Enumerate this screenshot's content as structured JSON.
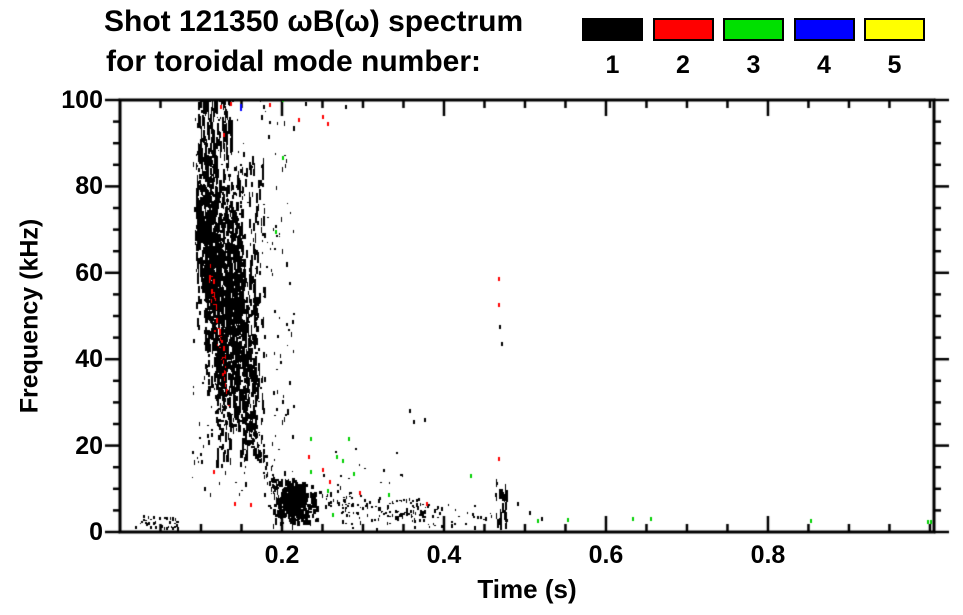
{
  "chart_data": {
    "type": "scatter",
    "title": "Shot 121350 ωB(ω) spectrum",
    "subtitle": "for toroidal mode number:",
    "legend": {
      "position": "top-right",
      "entries": [
        {
          "label": "1",
          "color": "#000000"
        },
        {
          "label": "2",
          "color": "#ff0000"
        },
        {
          "label": "3",
          "color": "#00e000"
        },
        {
          "label": "4",
          "color": "#0000ff"
        },
        {
          "label": "5",
          "color": "#ffff00"
        }
      ]
    },
    "x_axis": {
      "label": "Time (s)",
      "range": [
        0,
        1.005
      ],
      "major_ticks": [
        0.2,
        0.4,
        0.6,
        0.8
      ],
      "major_tick_labels": [
        "0.2",
        "0.4",
        "0.6",
        "0.8"
      ],
      "minor_tick_step": 0.05,
      "grid": false
    },
    "y_axis": {
      "label": "Frequency (kHz)",
      "range": [
        0,
        100
      ],
      "major_ticks": [
        0,
        20,
        40,
        60,
        80,
        100
      ],
      "major_tick_labels": [
        "0",
        "20",
        "40",
        "60",
        "80",
        "100"
      ],
      "minor_tick_step": 5,
      "grid": false
    },
    "series": [
      {
        "name": "n=1",
        "mode": 1,
        "color": "#000000",
        "clusters": [
          {
            "name": "pre-burst-specks",
            "style": "specks",
            "t": [
              0.018,
              0.072
            ],
            "f": [
              0.3,
              3.5
            ],
            "n": 40
          },
          {
            "name": "burst-upper",
            "style": "dense",
            "t": [
              0.093,
              0.12
            ],
            "f": [
              45,
              90
            ],
            "n": 430
          },
          {
            "name": "burst-core",
            "style": "dense",
            "t": [
              0.104,
              0.152
            ],
            "f": [
              28,
              88
            ],
            "n": 1000
          },
          {
            "name": "burst-lower",
            "style": "dense",
            "t": [
              0.118,
              0.168
            ],
            "f": [
              12,
              62
            ],
            "n": 550
          },
          {
            "name": "burst-top-spikes",
            "style": "spikes",
            "t": [
              0.095,
              0.138
            ],
            "f": [
              85,
              100
            ],
            "n": 120
          },
          {
            "name": "burst-halo",
            "style": "sparse",
            "t": [
              0.088,
              0.185
            ],
            "f": [
              8,
              100
            ],
            "n": 200
          },
          {
            "name": "post-burst-streaks",
            "style": "streaks",
            "t": [
              0.152,
              0.178
            ],
            "f": [
              15,
              85
            ],
            "n": 150,
            "columns": 5
          },
          {
            "name": "chirp-down",
            "style": "sparse",
            "line": {
              "t": [
                0.148,
                0.196
              ],
              "f": [
                33,
                7
              ]
            },
            "jitter": 2.5,
            "n": 90
          },
          {
            "name": "sparse-column",
            "style": "sparse",
            "t": [
              0.186,
              0.214
            ],
            "f": [
              12,
              96
            ],
            "n": 60
          },
          {
            "name": "low-freq-blob",
            "style": "blob",
            "t": [
              0.183,
              0.247
            ],
            "f": [
              0.5,
              12
            ],
            "n": 430
          },
          {
            "name": "low-tail-train",
            "style": "specks",
            "line": {
              "t": [
                0.248,
                0.378
              ],
              "f": [
                7,
                4.5
              ]
            },
            "jitter": 2.5,
            "n": 105
          },
          {
            "name": "mid-band-specks",
            "style": "specks",
            "t": [
              0.25,
              0.35
            ],
            "f": [
              8,
              20
            ],
            "n": 15
          },
          {
            "name": "bottom-scatter",
            "style": "specks",
            "t": [
              0.27,
              0.46
            ],
            "f": [
              0.3,
              6
            ],
            "n": 70
          },
          {
            "name": "streak-0p47",
            "style": "streaks",
            "t": [
              0.462,
              0.478
            ],
            "f": [
              0.5,
              11
            ],
            "n": 36,
            "columns": 3
          }
        ],
        "points": [
          {
            "t": 0.177,
            "f": 98
          },
          {
            "t": 0.228,
            "f": 98.5
          },
          {
            "t": 0.278,
            "f": 98
          },
          {
            "t": 0.357,
            "f": 27.5
          },
          {
            "t": 0.362,
            "f": 25
          },
          {
            "t": 0.375,
            "f": 25.5
          },
          {
            "t": 0.468,
            "f": 47
          },
          {
            "t": 0.47,
            "f": 43
          },
          {
            "t": 0.49,
            "f": 6
          },
          {
            "t": 0.505,
            "f": 4
          },
          {
            "t": 0.52,
            "f": 2.5
          }
        ]
      },
      {
        "name": "n=2",
        "mode": 2,
        "color": "#ff0000",
        "clusters": [
          {
            "name": "red-chirp",
            "style": "sparse",
            "line": {
              "t": [
                0.109,
                0.134
              ],
              "f": [
                61,
                30
              ]
            },
            "jitter": 2,
            "n": 45
          }
        ],
        "points": [
          {
            "t": 0.1235,
            "f": 98
          },
          {
            "t": 0.136,
            "f": 98.5
          },
          {
            "t": 0.127,
            "f": 91.5
          },
          {
            "t": 0.184,
            "f": 98.3
          },
          {
            "t": 0.22,
            "f": 95
          },
          {
            "t": 0.25,
            "f": 95.5
          },
          {
            "t": 0.256,
            "f": 94
          },
          {
            "t": 0.115,
            "f": 13.5
          },
          {
            "t": 0.141,
            "f": 6
          },
          {
            "t": 0.16,
            "f": 5.8
          },
          {
            "t": 0.232,
            "f": 17
          },
          {
            "t": 0.25,
            "f": 14
          },
          {
            "t": 0.258,
            "f": 11
          },
          {
            "t": 0.295,
            "f": 8.5
          },
          {
            "t": 0.378,
            "f": 6
          },
          {
            "t": 0.467,
            "f": 58
          },
          {
            "t": 0.467,
            "f": 52
          },
          {
            "t": 0.467,
            "f": 16.5
          }
        ]
      },
      {
        "name": "n=3",
        "mode": 3,
        "color": "#00d000",
        "clusters": [],
        "points": [
          {
            "t": 0.2,
            "f": 99.5
          },
          {
            "t": 0.2,
            "f": 86
          },
          {
            "t": 0.191,
            "f": 69
          },
          {
            "t": 0.235,
            "f": 21
          },
          {
            "t": 0.281,
            "f": 21
          },
          {
            "t": 0.267,
            "f": 17
          },
          {
            "t": 0.274,
            "f": 16
          },
          {
            "t": 0.288,
            "f": 13
          },
          {
            "t": 0.235,
            "f": 13.5
          },
          {
            "t": 0.256,
            "f": 9
          },
          {
            "t": 0.331,
            "f": 8
          },
          {
            "t": 0.262,
            "f": 3.5
          },
          {
            "t": 0.432,
            "f": 12.5
          },
          {
            "t": 0.515,
            "f": 2
          },
          {
            "t": 0.552,
            "f": 2.2
          },
          {
            "t": 0.632,
            "f": 2.5
          },
          {
            "t": 0.654,
            "f": 2.5
          },
          {
            "t": 0.852,
            "f": 2
          },
          {
            "t": 0.996,
            "f": 1.8
          },
          {
            "t": 1.0,
            "f": 1.8
          }
        ]
      },
      {
        "name": "n=4",
        "mode": 4,
        "color": "#0000ff",
        "clusters": [],
        "points": [
          {
            "t": 0.148,
            "f": 97.5
          }
        ]
      },
      {
        "name": "n=5",
        "mode": 5,
        "color": "#ffff00",
        "clusters": [],
        "points": []
      }
    ]
  }
}
